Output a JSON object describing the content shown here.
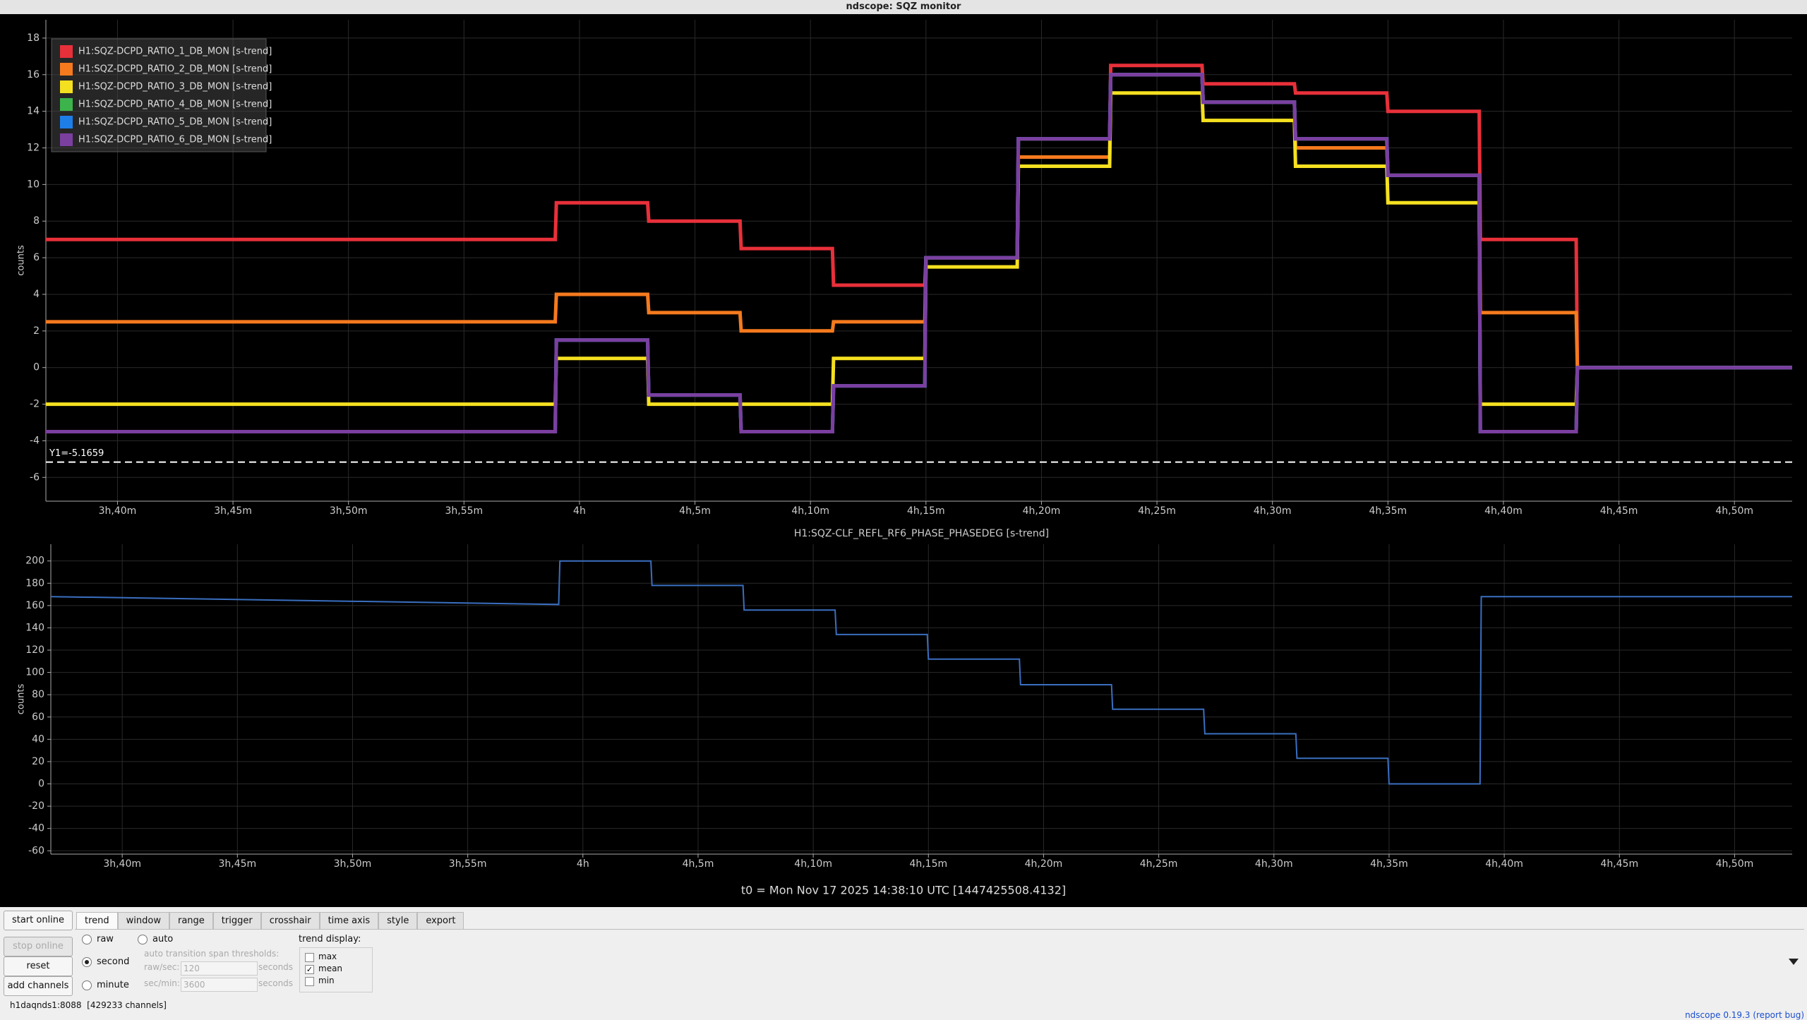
{
  "window": {
    "title": "ndscope: SQZ monitor"
  },
  "chart_data": [
    {
      "type": "line",
      "ylabel": "counts",
      "grid": true,
      "legend": "upper left",
      "x": [
        216.9,
        238.95,
        239.0,
        242.95,
        243.0,
        246.95,
        247.0,
        250.95,
        251.0,
        254.95,
        255.0,
        258.95,
        259.0,
        262.95,
        263.0,
        266.95,
        267.0,
        270.95,
        271.0,
        274.95,
        275.0,
        278.95,
        279.0,
        283.15,
        283.2,
        292.5
      ],
      "series": [
        {
          "name": "H1:SQZ-DCPD_RATIO_1_DB_MON [s-trend]",
          "color": "#e8303a",
          "values": [
            7,
            7,
            9,
            9,
            8,
            8,
            6.5,
            6.5,
            4.5,
            4.5,
            6,
            6,
            12.5,
            12.5,
            16.5,
            16.5,
            15.5,
            15.5,
            15,
            15,
            14,
            14,
            7,
            7,
            0,
            0
          ]
        },
        {
          "name": "H1:SQZ-DCPD_RATIO_2_DB_MON [s-trend]",
          "color": "#f57a1e",
          "values": [
            2.5,
            2.5,
            4,
            4,
            3,
            3,
            2,
            2,
            2.5,
            2.5,
            6,
            6,
            11.5,
            11.5,
            16,
            16,
            14.5,
            14.5,
            12,
            12,
            10.5,
            10.5,
            3,
            3,
            0,
            0
          ]
        },
        {
          "name": "H1:SQZ-DCPD_RATIO_3_DB_MON [s-trend]",
          "color": "#f5e020",
          "values": [
            -2,
            -2,
            0.5,
            0.5,
            -2,
            -2,
            -2,
            -2,
            0.5,
            0.5,
            5.5,
            5.5,
            11,
            11,
            15,
            15,
            13.5,
            13.5,
            11,
            11,
            9,
            9,
            -2,
            -2,
            0,
            0
          ]
        },
        {
          "name": "H1:SQZ-DCPD_RATIO_4_DB_MON [s-trend]",
          "color": "#3cb44b",
          "values": [
            -3.5,
            -3.5,
            1.5,
            1.5,
            -1.5,
            -1.5,
            -3.5,
            -3.5,
            -1,
            -1,
            6,
            6,
            12.5,
            12.5,
            16,
            16,
            14.5,
            14.5,
            12.5,
            12.5,
            10.5,
            10.5,
            -3.5,
            -3.5,
            0,
            0
          ]
        },
        {
          "name": "H1:SQZ-DCPD_RATIO_5_DB_MON [s-trend]",
          "color": "#1e7ee8",
          "values": [
            -3.5,
            -3.5,
            1.5,
            1.5,
            -1.5,
            -1.5,
            -3.5,
            -3.5,
            -1,
            -1,
            6,
            6,
            12.5,
            12.5,
            16,
            16,
            14.5,
            14.5,
            12.5,
            12.5,
            10.5,
            10.5,
            -3.5,
            -3.5,
            0,
            0
          ]
        },
        {
          "name": "H1:SQZ-DCPD_RATIO_6_DB_MON [s-trend]",
          "color": "#7b3fa0",
          "values": [
            -3.5,
            -3.5,
            1.5,
            1.5,
            -1.5,
            -1.5,
            -3.5,
            -3.5,
            -1,
            -1,
            6,
            6,
            12.5,
            12.5,
            16,
            16,
            14.5,
            14.5,
            12.5,
            12.5,
            10.5,
            10.5,
            -3.5,
            -3.5,
            0,
            0
          ]
        }
      ],
      "xlim": [
        216.9,
        292.5
      ],
      "xticks": [
        {
          "value": 220,
          "label": "3h,40m"
        },
        {
          "value": 225,
          "label": "3h,45m"
        },
        {
          "value": 230,
          "label": "3h,50m"
        },
        {
          "value": 235,
          "label": "3h,55m"
        },
        {
          "value": 240,
          "label": "4h"
        },
        {
          "value": 245,
          "label": "4h,5m"
        },
        {
          "value": 250,
          "label": "4h,10m"
        },
        {
          "value": 255,
          "label": "4h,15m"
        },
        {
          "value": 260,
          "label": "4h,20m"
        },
        {
          "value": 265,
          "label": "4h,25m"
        },
        {
          "value": 270,
          "label": "4h,30m"
        },
        {
          "value": 275,
          "label": "4h,35m"
        },
        {
          "value": 280,
          "label": "4h,40m"
        },
        {
          "value": 285,
          "label": "4h,45m"
        },
        {
          "value": 290,
          "label": "4h,50m"
        }
      ],
      "ylim": [
        -7.3,
        19
      ],
      "yticks": [
        -6,
        -4,
        -2,
        0,
        2,
        4,
        6,
        8,
        10,
        12,
        14,
        16,
        18
      ],
      "cursor": {
        "value": -5.1659,
        "label": "Y1=-5.1659"
      }
    },
    {
      "type": "line",
      "title": "H1:SQZ-CLF_REFL_RF6_PHASE_PHASEDEG [s-trend]",
      "ylabel": "counts",
      "grid": true,
      "x": [
        216.9,
        238.95,
        239.0,
        242.95,
        243.0,
        246.95,
        247.0,
        250.95,
        251.0,
        254.95,
        255.0,
        258.95,
        259.0,
        262.95,
        263.0,
        266.95,
        267.0,
        270.95,
        271.0,
        274.95,
        275.0,
        278.95,
        279.0,
        283.15,
        283.2,
        292.5
      ],
      "series": [
        {
          "name": "H1:SQZ-CLF_REFL_RF6_PHASE_PHASEDEG [s-trend]",
          "color": "#3a6fc0",
          "values": [
            168,
            161,
            200,
            200,
            178,
            178,
            156,
            156,
            134,
            134,
            112,
            112,
            89,
            89,
            67,
            67,
            45,
            45,
            23,
            23,
            0,
            0,
            168,
            168,
            168,
            168
          ]
        }
      ],
      "xlim": [
        216.9,
        292.5
      ],
      "xticks": [
        {
          "value": 220,
          "label": "3h,40m"
        },
        {
          "value": 225,
          "label": "3h,45m"
        },
        {
          "value": 230,
          "label": "3h,50m"
        },
        {
          "value": 235,
          "label": "3h,55m"
        },
        {
          "value": 240,
          "label": "4h"
        },
        {
          "value": 245,
          "label": "4h,5m"
        },
        {
          "value": 250,
          "label": "4h,10m"
        },
        {
          "value": 255,
          "label": "4h,15m"
        },
        {
          "value": 260,
          "label": "4h,20m"
        },
        {
          "value": 265,
          "label": "4h,25m"
        },
        {
          "value": 270,
          "label": "4h,30m"
        },
        {
          "value": 275,
          "label": "4h,35m"
        },
        {
          "value": 280,
          "label": "4h,40m"
        },
        {
          "value": 285,
          "label": "4h,45m"
        },
        {
          "value": 290,
          "label": "4h,50m"
        }
      ],
      "ylim": [
        -63,
        215
      ],
      "yticks": [
        -60,
        -40,
        -20,
        0,
        20,
        40,
        60,
        80,
        100,
        120,
        140,
        160,
        180,
        200
      ]
    }
  ],
  "t0": "t0 = Mon Nov 17 2025 14:38:10 UTC [1447425508.4132]",
  "buttons": [
    "start online",
    "stop online",
    "reset",
    "add channels"
  ],
  "tabs": [
    "trend",
    "window",
    "range",
    "trigger",
    "crosshair",
    "time axis",
    "style",
    "export"
  ],
  "trend": {
    "modes": [
      {
        "label": "raw",
        "checked": false
      },
      {
        "label": "second",
        "checked": true
      },
      {
        "label": "minute",
        "checked": false
      },
      {
        "label": "auto",
        "checked": false
      }
    ],
    "thresholds_label": "auto transition span thresholds:",
    "raw_sec": {
      "label": "raw/sec:",
      "value": "120",
      "unit": "seconds"
    },
    "sec_min": {
      "label": "sec/min:",
      "value": "3600",
      "unit": "seconds"
    },
    "display_label": "trend display:",
    "display": [
      {
        "label": "max",
        "checked": false
      },
      {
        "label": "mean",
        "checked": true
      },
      {
        "label": "min",
        "checked": false
      }
    ]
  },
  "status": {
    "server": "h1daqnds1:8088  [429233 channels]",
    "app": "ndscope",
    "version": "0.19.3",
    "report": "(report bug)"
  }
}
